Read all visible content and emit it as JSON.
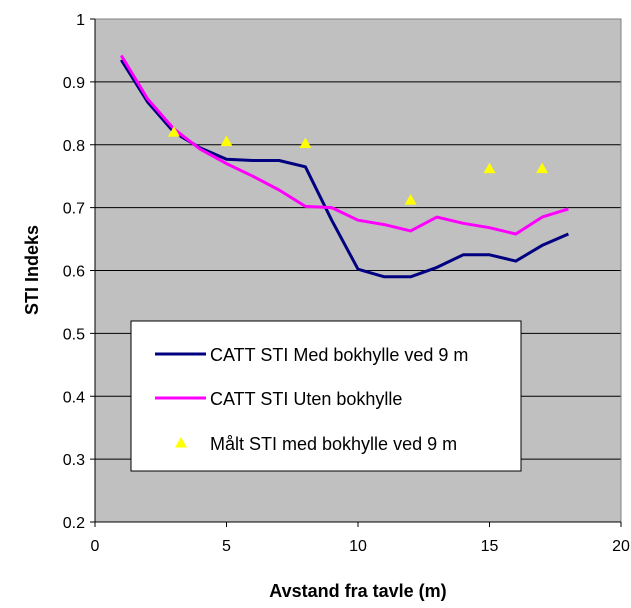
{
  "chart_data": {
    "type": "line",
    "xlabel": "Avstand fra tavle (m)",
    "ylabel": "STI Indeks",
    "xlim": [
      0,
      20
    ],
    "ylim": [
      0.2,
      1
    ],
    "xticks": [
      "0",
      "5",
      "10",
      "15",
      "20"
    ],
    "yticks": [
      "0.2",
      "0.3",
      "0.4",
      "0.5",
      "0.6",
      "0.7",
      "0.8",
      "0.9",
      "1"
    ],
    "grid": "horizontal",
    "plot_background": "#c0c0c0",
    "legend_position": "bottom-left",
    "series": [
      {
        "name": "CATT STI Med bokhylle ved 9 m",
        "kind": "line",
        "color": "#000080",
        "x": [
          1,
          2,
          3,
          4,
          5,
          6,
          7,
          8,
          9,
          10,
          11,
          12,
          13,
          14,
          15,
          16,
          17,
          18
        ],
        "y": [
          0.935,
          0.868,
          0.82,
          0.795,
          0.777,
          0.775,
          0.775,
          0.765,
          0.68,
          0.602,
          0.59,
          0.59,
          0.605,
          0.625,
          0.625,
          0.615,
          0.64,
          0.658
        ]
      },
      {
        "name": "CATT STI Uten bokhylle",
        "kind": "line",
        "color": "#ff00ff",
        "x": [
          1,
          2,
          3,
          4,
          5,
          6,
          7,
          8,
          9,
          10,
          11,
          12,
          13,
          14,
          15,
          16,
          17,
          18
        ],
        "y": [
          0.942,
          0.873,
          0.825,
          0.793,
          0.77,
          0.75,
          0.728,
          0.702,
          0.7,
          0.68,
          0.673,
          0.663,
          0.685,
          0.675,
          0.668,
          0.658,
          0.685,
          0.698
        ]
      },
      {
        "name": "Målt STI med bokhylle ved 9 m",
        "kind": "scatter",
        "marker": "triangle",
        "color": "#ffff00",
        "x": [
          3,
          5,
          8,
          12,
          15,
          17
        ],
        "y": [
          0.82,
          0.805,
          0.802,
          0.712,
          0.762,
          0.762
        ]
      }
    ]
  }
}
